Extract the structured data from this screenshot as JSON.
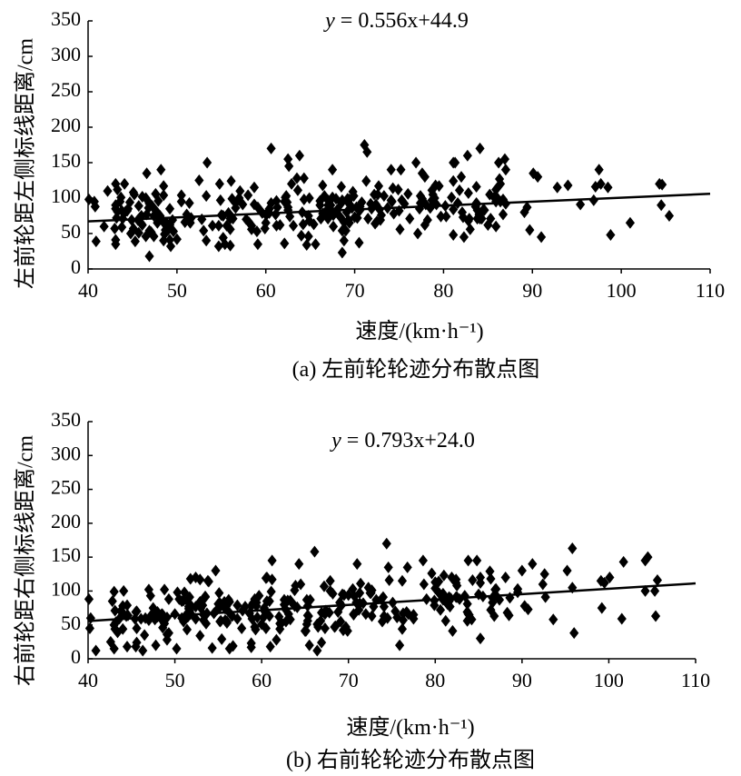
{
  "chart_data": [
    {
      "type": "scatter",
      "equation_prefix": "y",
      "equation_suffix": " = 0.556x+44.9",
      "trend": {
        "slope": 0.556,
        "intercept": 44.9
      },
      "xlabel": "速度/(km·h⁻¹)",
      "ylabel": "左前轮距左侧标线距离/cm",
      "caption": "(a) 左前轮轮迹分布散点图",
      "xlim": [
        40,
        110
      ],
      "ylim": [
        0,
        350
      ],
      "xticks": [
        40,
        50,
        60,
        70,
        80,
        90,
        100,
        110
      ],
      "yticks": [
        0,
        50,
        100,
        150,
        200,
        250,
        300,
        350
      ],
      "seed": 11,
      "n_points": 330,
      "points": [
        [
          40.1,
          98
        ],
        [
          40.8,
          88
        ],
        [
          42.2,
          110
        ],
        [
          44.1,
          120
        ],
        [
          45.2,
          105
        ],
        [
          45.8,
          72
        ],
        [
          46.6,
          135
        ],
        [
          48.2,
          140
        ],
        [
          48.5,
          40
        ],
        [
          43.1,
          35
        ],
        [
          41.8,
          60
        ],
        [
          52.5,
          125
        ],
        [
          53.4,
          150
        ],
        [
          57.0,
          100
        ],
        [
          60.6,
          170
        ],
        [
          62.5,
          155
        ],
        [
          62.6,
          145
        ],
        [
          63.8,
          160
        ],
        [
          67.5,
          140
        ],
        [
          71.1,
          175
        ],
        [
          71.4,
          165
        ],
        [
          74.1,
          140
        ],
        [
          75.2,
          140
        ],
        [
          77.6,
          135
        ],
        [
          81.3,
          150
        ],
        [
          82.7,
          160
        ],
        [
          84.1,
          170
        ],
        [
          86.9,
          155
        ],
        [
          87.0,
          140
        ],
        [
          90.1,
          135
        ],
        [
          90.6,
          130
        ],
        [
          92.8,
          115
        ],
        [
          94.0,
          118
        ],
        [
          97.5,
          140
        ],
        [
          97.7,
          120
        ],
        [
          98.5,
          115
        ],
        [
          104.3,
          120
        ],
        [
          104.5,
          90
        ],
        [
          101.0,
          65
        ],
        [
          98.8,
          48
        ],
        [
          91.0,
          45
        ],
        [
          89.7,
          55
        ],
        [
          89.1,
          80
        ],
        [
          85.2,
          105
        ],
        [
          82.3,
          45
        ],
        [
          77.9,
          130
        ],
        [
          68.8,
          40
        ],
        [
          65.6,
          35
        ],
        [
          49.3,
          32
        ],
        [
          55.4,
          35
        ]
      ]
    },
    {
      "type": "scatter",
      "equation_prefix": "y",
      "equation_suffix": " = 0.793x+24.0",
      "trend": {
        "slope": 0.793,
        "intercept": 24.0
      },
      "xlabel": "速度/(km·h⁻¹)",
      "ylabel": "右前轮距右侧标线距离/cm",
      "caption": "(b) 右前轮轮迹分布散点图",
      "xlim": [
        40,
        110
      ],
      "ylim": [
        0,
        350
      ],
      "xticks": [
        40,
        50,
        60,
        70,
        80,
        90,
        100,
        110
      ],
      "yticks": [
        0,
        50,
        100,
        150,
        200,
        250,
        300,
        350
      ],
      "seed": 29,
      "n_points": 330,
      "points": [
        [
          40.1,
          88
        ],
        [
          40.3,
          60
        ],
        [
          40.9,
          12
        ],
        [
          42.6,
          25
        ],
        [
          42.8,
          85
        ],
        [
          44.1,
          100
        ],
        [
          45.5,
          18
        ],
        [
          47.0,
          102
        ],
        [
          48.8,
          102
        ],
        [
          50.2,
          15
        ],
        [
          53.8,
          115
        ],
        [
          54.7,
          130
        ],
        [
          56.3,
          15
        ],
        [
          60.6,
          120
        ],
        [
          61.2,
          145
        ],
        [
          64.3,
          140
        ],
        [
          66.1,
          158
        ],
        [
          67.9,
          115
        ],
        [
          71.0,
          140
        ],
        [
          72.3,
          105
        ],
        [
          74.4,
          170
        ],
        [
          74.6,
          135
        ],
        [
          76.8,
          135
        ],
        [
          78.6,
          145
        ],
        [
          83.8,
          145
        ],
        [
          84.8,
          145
        ],
        [
          85.2,
          120
        ],
        [
          88.1,
          120
        ],
        [
          90.0,
          130
        ],
        [
          92.6,
          125
        ],
        [
          95.8,
          163
        ],
        [
          95.2,
          130
        ],
        [
          99.1,
          115
        ],
        [
          100.1,
          120
        ],
        [
          101.7,
          143
        ],
        [
          104.2,
          145
        ],
        [
          104.2,
          100
        ],
        [
          105.3,
          100
        ],
        [
          105.4,
          63
        ],
        [
          99.2,
          75
        ],
        [
          96.0,
          38
        ],
        [
          93.6,
          58
        ],
        [
          88.3,
          68
        ],
        [
          85.2,
          30
        ],
        [
          75.9,
          20
        ],
        [
          65.5,
          20
        ],
        [
          61.0,
          18
        ],
        [
          47.8,
          20
        ],
        [
          40.2,
          45
        ],
        [
          43.0,
          15
        ]
      ]
    }
  ]
}
